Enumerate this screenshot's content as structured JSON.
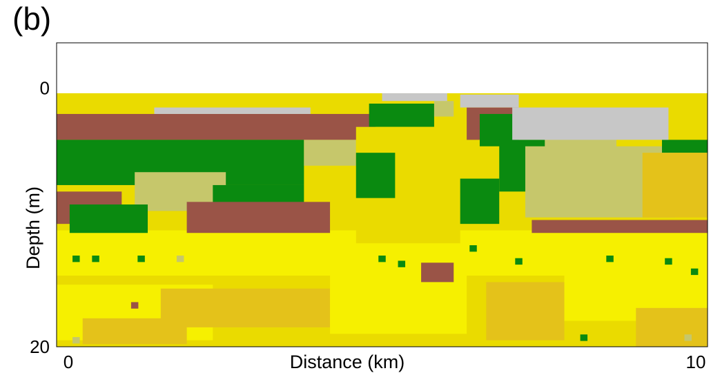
{
  "panel_label": "(b)",
  "colors": {
    "brown": "#9a5447",
    "green": "#0a8a10",
    "olive": "#c6c76b",
    "yellow": "#f6f000",
    "gold": "#eadb00",
    "dark_gold": "#e4c21a",
    "gray": "#c7c7c7",
    "background": "#ffffff"
  },
  "chart_data": {
    "type": "heatmap",
    "title": "",
    "xlabel": "Distance (km)",
    "ylabel": "Depth (m)",
    "xlim": [
      0,
      10
    ],
    "ylim": [
      20,
      -3.5
    ],
    "x_tick_labels": [
      {
        "value": 0,
        "label": "0"
      },
      {
        "value": 10,
        "label": "10"
      }
    ],
    "y_tick_labels": [
      {
        "value": 0,
        "label": "0"
      },
      {
        "value": 20,
        "label": "20"
      }
    ],
    "legend": "none",
    "grid": false,
    "zones": [
      {
        "class": "gold",
        "x": [
          0,
          10
        ],
        "y": [
          0.4,
          20
        ]
      },
      {
        "class": "yellow",
        "x": [
          0,
          10
        ],
        "y": [
          11.0,
          14.5
        ]
      },
      {
        "class": "yellow",
        "x": [
          0,
          2.4
        ],
        "y": [
          15.2,
          19.5
        ]
      },
      {
        "class": "dark_gold",
        "x": [
          0.4,
          2.0
        ],
        "y": [
          17.8,
          19.8
        ]
      },
      {
        "class": "dark_gold",
        "x": [
          1.6,
          4.2
        ],
        "y": [
          15.5,
          18.5
        ]
      },
      {
        "class": "yellow",
        "x": [
          4.2,
          6.3
        ],
        "y": [
          14.2,
          19.0
        ]
      },
      {
        "class": "dark_gold",
        "x": [
          6.6,
          7.8
        ],
        "y": [
          15.0,
          19.5
        ]
      },
      {
        "class": "yellow",
        "x": [
          7.8,
          10
        ],
        "y": [
          14.5,
          18.0
        ]
      },
      {
        "class": "dark_gold",
        "x": [
          8.9,
          10
        ],
        "y": [
          17.0,
          20.0
        ]
      },
      {
        "class": "brown",
        "x": [
          0,
          4.9
        ],
        "y": [
          2.0,
          4.0
        ]
      },
      {
        "class": "green",
        "x": [
          0,
          3.8
        ],
        "y": [
          4.0,
          7.5
        ]
      },
      {
        "class": "olive",
        "x": [
          1.2,
          2.6
        ],
        "y": [
          6.5,
          9.5
        ]
      },
      {
        "class": "brown",
        "x": [
          0,
          1.0
        ],
        "y": [
          8.0,
          10.5
        ]
      },
      {
        "class": "green",
        "x": [
          0.2,
          1.4
        ],
        "y": [
          9.0,
          11.2
        ]
      },
      {
        "class": "green",
        "x": [
          2.4,
          3.8
        ],
        "y": [
          7.5,
          9.5
        ]
      },
      {
        "class": "brown",
        "x": [
          2.0,
          4.2
        ],
        "y": [
          8.8,
          11.2
        ]
      },
      {
        "class": "olive",
        "x": [
          3.8,
          4.6
        ],
        "y": [
          4.0,
          6.0
        ]
      },
      {
        "class": "green",
        "x": [
          4.8,
          5.8
        ],
        "y": [
          1.2,
          3.0
        ]
      },
      {
        "class": "olive",
        "x": [
          5.8,
          6.1
        ],
        "y": [
          1.0,
          2.2
        ]
      },
      {
        "class": "gold",
        "x": [
          4.6,
          6.2
        ],
        "y": [
          3.0,
          12.0
        ]
      },
      {
        "class": "green",
        "x": [
          4.6,
          5.2
        ],
        "y": [
          5.0,
          8.5
        ]
      },
      {
        "class": "brown",
        "x": [
          6.3,
          7.1
        ],
        "y": [
          1.5,
          4.0
        ]
      },
      {
        "class": "green",
        "x": [
          6.5,
          7.1
        ],
        "y": [
          2.0,
          4.5
        ]
      },
      {
        "class": "green",
        "x": [
          6.8,
          7.6
        ],
        "y": [
          4.0,
          8.0
        ]
      },
      {
        "class": "green",
        "x": [
          6.2,
          6.8
        ],
        "y": [
          7.0,
          10.5
        ]
      },
      {
        "class": "olive",
        "x": [
          7.2,
          9.5
        ],
        "y": [
          4.5,
          10.0
        ]
      },
      {
        "class": "brown",
        "x": [
          7.3,
          10
        ],
        "y": [
          10.2,
          11.2
        ]
      },
      {
        "class": "olive",
        "x": [
          7.5,
          8.6
        ],
        "y": [
          3.5,
          5.0
        ]
      },
      {
        "class": "green",
        "x": [
          9.3,
          10
        ],
        "y": [
          4.0,
          5.0
        ]
      },
      {
        "class": "dark_gold",
        "x": [
          9.0,
          10
        ],
        "y": [
          5.0,
          10.0
        ]
      },
      {
        "class": "brown",
        "x": [
          5.6,
          6.1
        ],
        "y": [
          13.5,
          15.0
        ]
      },
      {
        "class": "gray",
        "x": [
          5.0,
          6.0
        ],
        "y": [
          0.4,
          1.0
        ]
      },
      {
        "class": "gray",
        "x": [
          6.2,
          7.1
        ],
        "y": [
          0.5,
          1.5
        ]
      },
      {
        "class": "gray",
        "x": [
          7.0,
          9.4
        ],
        "y": [
          1.5,
          4.0
        ]
      },
      {
        "class": "gray",
        "x": [
          1.5,
          3.9
        ],
        "y": [
          1.5,
          2.0
        ]
      }
    ],
    "spots": [
      {
        "class": "green",
        "x": 0.3,
        "y": 13.2
      },
      {
        "class": "green",
        "x": 0.6,
        "y": 13.2
      },
      {
        "class": "green",
        "x": 1.3,
        "y": 13.2
      },
      {
        "class": "green",
        "x": 5.0,
        "y": 13.2
      },
      {
        "class": "green",
        "x": 5.3,
        "y": 13.6
      },
      {
        "class": "green",
        "x": 6.4,
        "y": 12.4
      },
      {
        "class": "green",
        "x": 7.1,
        "y": 13.4
      },
      {
        "class": "green",
        "x": 8.5,
        "y": 13.2
      },
      {
        "class": "green",
        "x": 9.4,
        "y": 13.4
      },
      {
        "class": "green",
        "x": 8.1,
        "y": 19.3
      },
      {
        "class": "brown",
        "x": 1.2,
        "y": 16.8
      },
      {
        "class": "olive",
        "x": 1.9,
        "y": 13.2
      },
      {
        "class": "olive",
        "x": 9.7,
        "y": 19.3
      },
      {
        "class": "olive",
        "x": 0.3,
        "y": 19.5
      },
      {
        "class": "green",
        "x": 9.8,
        "y": 14.2
      }
    ]
  }
}
